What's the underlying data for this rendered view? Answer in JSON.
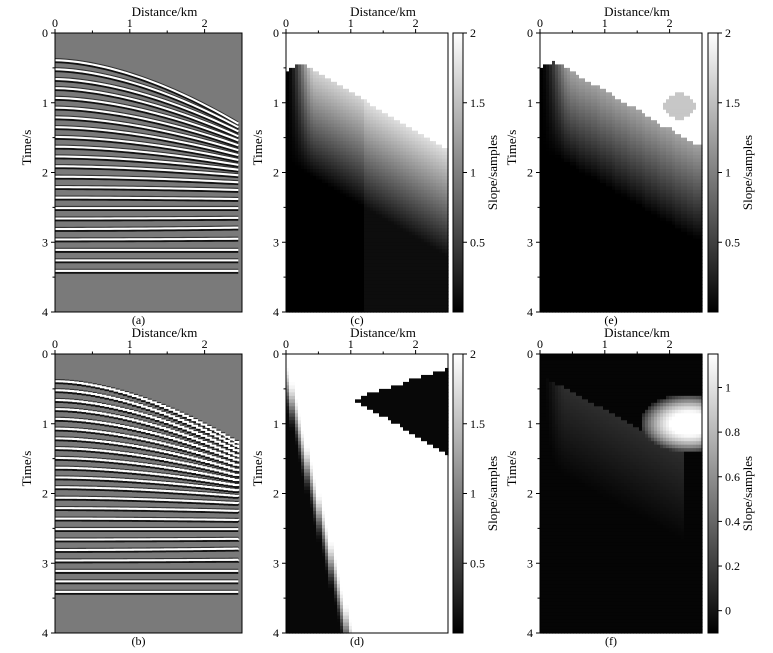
{
  "chart_data": [
    {
      "id": "a",
      "type": "heatmap",
      "content": "seismic-gather",
      "caption": "(a)",
      "xlabel": "Distance/km",
      "ylabel": "Time/s",
      "xlim": [
        0,
        2.5
      ],
      "ylim": [
        0,
        4
      ],
      "xticks": [
        "0",
        "1",
        "2"
      ],
      "yticks": [
        "0",
        "1",
        "2",
        "3",
        "4"
      ],
      "colormap": "gray",
      "events_t0_s": [
        0.39,
        0.52,
        0.66,
        0.79,
        0.93,
        1.07,
        1.21,
        1.35,
        1.49,
        1.63,
        1.77,
        1.91,
        2.06,
        2.21,
        2.36,
        2.51,
        2.66,
        2.81,
        2.96,
        3.11,
        3.26,
        3.41
      ],
      "moveout_end_t_s": [
        1.3,
        1.35,
        1.41,
        1.48,
        1.54,
        1.61,
        1.68,
        1.75,
        1.82,
        1.89,
        1.96,
        2.04,
        2.14,
        2.25,
        2.38,
        2.51,
        2.65,
        2.79,
        2.95,
        3.11,
        3.26,
        3.41
      ]
    },
    {
      "id": "b",
      "type": "heatmap",
      "content": "seismic-gather",
      "caption": "(b)",
      "xlabel": "Distance/km",
      "ylabel": "Time/s",
      "xlim": [
        0,
        2.5
      ],
      "ylim": [
        0,
        4
      ],
      "xticks": [
        "0",
        "1",
        "2"
      ],
      "yticks": [
        "0",
        "1",
        "2",
        "3",
        "4"
      ],
      "colormap": "gray",
      "events_t0_s": [
        0.39,
        0.52,
        0.66,
        0.79,
        0.93,
        1.07,
        1.21,
        1.35,
        1.49,
        1.63,
        1.77,
        1.91,
        2.06,
        2.21,
        2.36,
        2.51,
        2.66,
        2.81,
        2.96,
        3.11,
        3.26,
        3.41
      ],
      "moveout_end_t_s": [
        1.3,
        1.35,
        1.41,
        1.48,
        1.54,
        1.61,
        1.68,
        1.75,
        1.82,
        1.89,
        1.96,
        2.04,
        2.14,
        2.25,
        2.38,
        2.51,
        2.65,
        2.79,
        2.95,
        3.11,
        3.26,
        3.41
      ]
    },
    {
      "id": "c",
      "type": "heatmap",
      "content": "slope-field",
      "caption": "(c)",
      "xlabel": "Distance/km",
      "ylabel": "Time/s",
      "xlim": [
        0,
        2.5
      ],
      "ylim": [
        0,
        4
      ],
      "xticks": [
        "0",
        "1",
        "2"
      ],
      "yticks": [
        "0",
        "1",
        "2",
        "3",
        "4"
      ],
      "colorbar": {
        "label": "Slope/samples",
        "range": [
          0,
          2
        ],
        "ticks": [
          "0.5",
          "1",
          "1.5",
          "2"
        ],
        "tick_values": [
          0.5,
          1,
          1.5,
          2
        ]
      },
      "colormap": "gray"
    },
    {
      "id": "d",
      "type": "heatmap",
      "content": "slope-field",
      "caption": "(d)",
      "xlabel": "Distance/km",
      "ylabel": "Time/s",
      "xlim": [
        0,
        2.5
      ],
      "ylim": [
        0,
        4
      ],
      "xticks": [
        "0",
        "1",
        "2"
      ],
      "yticks": [
        "0",
        "1",
        "2",
        "3",
        "4"
      ],
      "colorbar": {
        "label": "Slope/samples",
        "range": [
          0,
          2
        ],
        "ticks": [
          "0.5",
          "1",
          "1.5",
          "2"
        ],
        "tick_values": [
          0.5,
          1,
          1.5,
          2
        ]
      },
      "colormap": "gray"
    },
    {
      "id": "e",
      "type": "heatmap",
      "content": "slope-field",
      "caption": "(e)",
      "xlabel": "Distance/km",
      "ylabel": "Time/s",
      "xlim": [
        0,
        2.5
      ],
      "ylim": [
        0,
        4
      ],
      "xticks": [
        "0",
        "1",
        "2"
      ],
      "yticks": [
        "0",
        "1",
        "2",
        "3",
        "4"
      ],
      "colorbar": {
        "label": "Slope/samples",
        "range": [
          0,
          2
        ],
        "ticks": [
          "0.5",
          "1",
          "1.5",
          "2"
        ],
        "tick_values": [
          0.5,
          1,
          1.5,
          2
        ]
      },
      "colormap": "gray"
    },
    {
      "id": "f",
      "type": "heatmap",
      "content": "slope-field",
      "caption": "(f)",
      "xlabel": "Distance/km",
      "ylabel": "Time/s",
      "xlim": [
        0,
        2.5
      ],
      "ylim": [
        0,
        4
      ],
      "xticks": [
        "0",
        "1",
        "2"
      ],
      "yticks": [
        "0",
        "1",
        "2",
        "3",
        "4"
      ],
      "colorbar": {
        "label": "Slope/samples",
        "range": [
          -0.1,
          1.15
        ],
        "ticks": [
          "0",
          "0.2",
          "0.4",
          "0.6",
          "0.8",
          "1"
        ],
        "tick_values": [
          0,
          0.2,
          0.4,
          0.6,
          0.8,
          1
        ]
      },
      "colormap": "gray"
    }
  ]
}
